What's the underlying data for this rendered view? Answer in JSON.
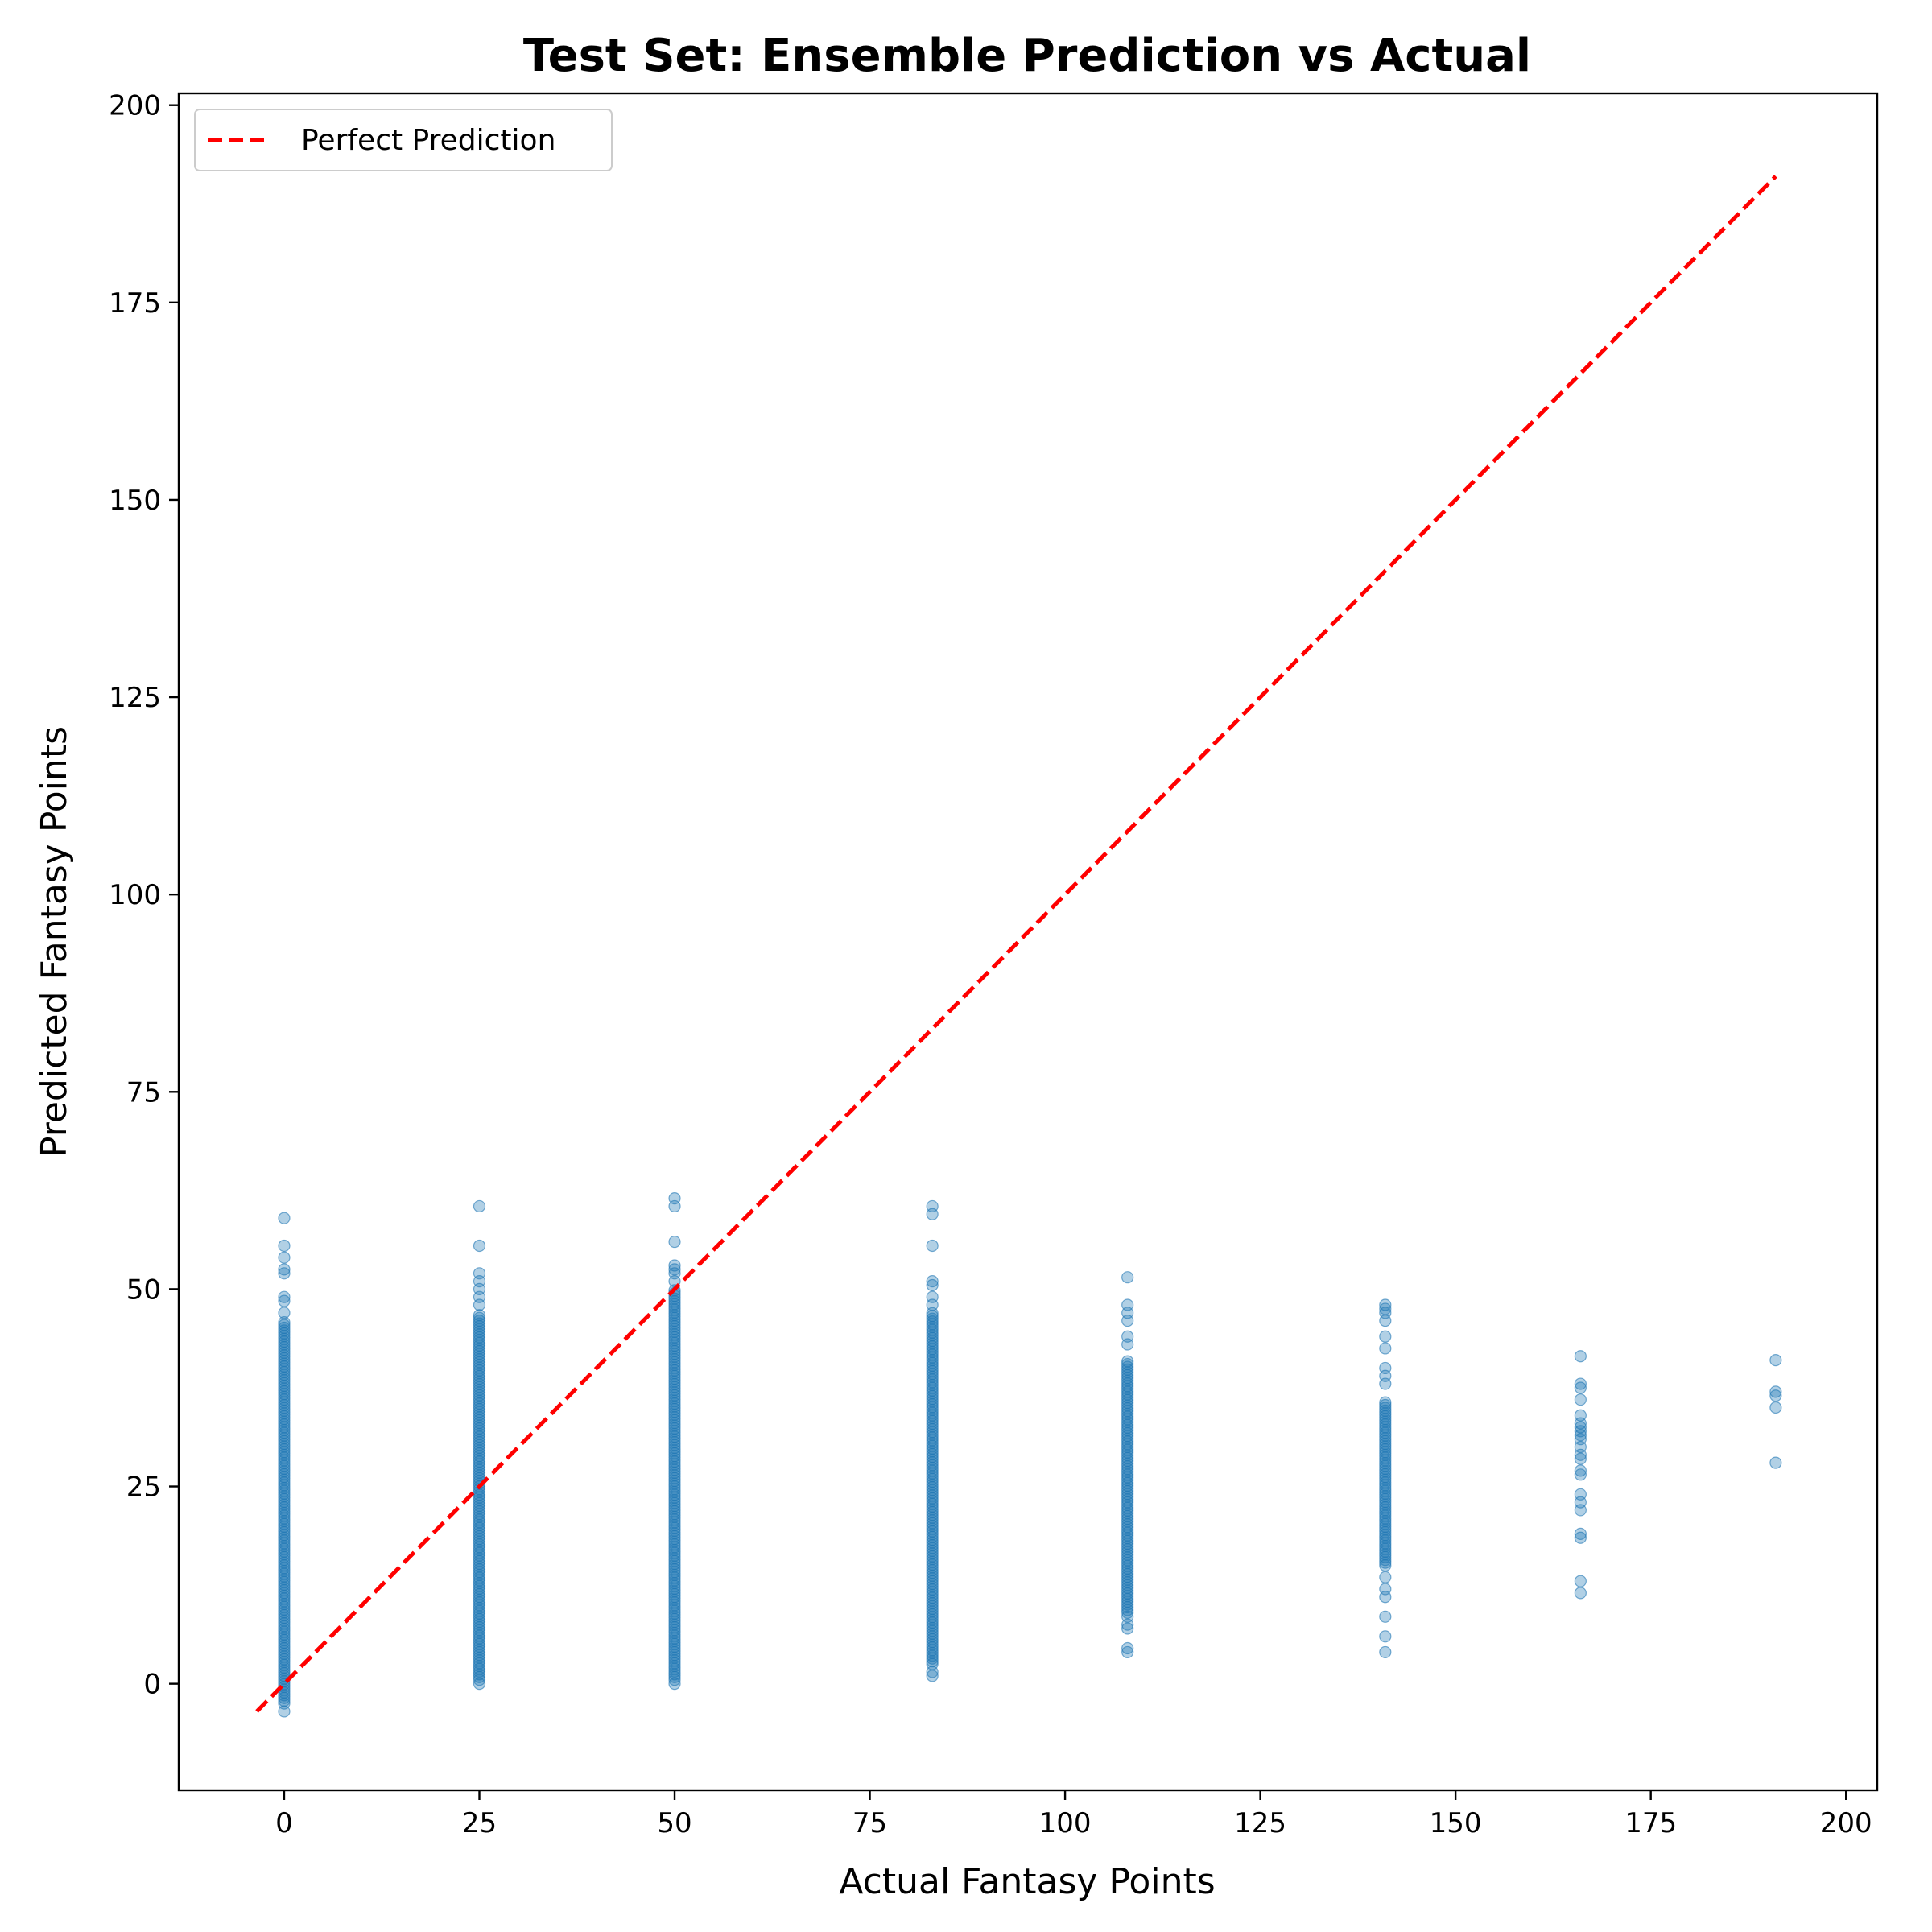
{
  "chart_data": {
    "type": "scatter",
    "title": "Test Set: Ensemble Prediction vs Actual",
    "xlabel": "Actual Fantasy Points",
    "ylabel": "Predicted Fantasy Points",
    "xlim": [
      -13.5,
      204
    ],
    "ylim": [
      -13.5,
      201.5
    ],
    "xticks": [
      0,
      25,
      50,
      75,
      100,
      125,
      150,
      175,
      200
    ],
    "yticks": [
      0,
      25,
      50,
      75,
      100,
      125,
      150,
      175,
      200
    ],
    "grid": false,
    "legend_position": "upper-left",
    "marker_color": "#1f77b4",
    "marker_alpha": 0.35,
    "line_color": "#ff0000",
    "series": [
      {
        "name": "Perfect Prediction",
        "kind": "line",
        "style": "dashed",
        "x": [
          -3.5,
          191
        ],
        "y": [
          -3.5,
          191
        ]
      },
      {
        "kind": "scatter",
        "columns": [
          {
            "x": 0,
            "dense": [
              -2.5,
              46
            ],
            "outliers": [
              -3.5,
              47,
              48.5,
              49,
              52,
              52.5,
              54,
              55.5,
              59
            ]
          },
          {
            "x": 25,
            "dense": [
              0.5,
              47
            ],
            "outliers": [
              0,
              48,
              49,
              50,
              51,
              52,
              55.5,
              60.5
            ]
          },
          {
            "x": 50,
            "dense": [
              0.5,
              50
            ],
            "outliers": [
              0,
              51,
              52,
              52.5,
              53,
              56,
              60.5,
              61.5
            ]
          },
          {
            "x": 83,
            "dense": [
              2.5,
              47
            ],
            "outliers": [
              1,
              1.5,
              48,
              49,
              50.5,
              51,
              55.5,
              59.5,
              60.5
            ]
          },
          {
            "x": 108,
            "dense": [
              9,
              41
            ],
            "outliers": [
              4,
              4.5,
              7,
              7.5,
              8.5,
              43,
              44,
              46,
              47,
              48,
              51.5
            ]
          },
          {
            "x": 141,
            "dense": [
              15,
              36
            ],
            "outliers": [
              4,
              6,
              8.5,
              11,
              12,
              13.5,
              38,
              39,
              40,
              42.5,
              44,
              46,
              47,
              47.5,
              48
            ]
          },
          {
            "x": 166,
            "points": [
              11.5,
              13,
              18.5,
              19,
              22,
              23,
              24,
              26.5,
              27,
              28.5,
              29,
              30,
              31,
              31.5,
              32,
              32.5,
              33,
              34,
              36,
              37.5,
              38,
              41.5
            ]
          },
          {
            "x": 191,
            "points": [
              28,
              35,
              36.5,
              37,
              41
            ]
          }
        ]
      }
    ]
  }
}
